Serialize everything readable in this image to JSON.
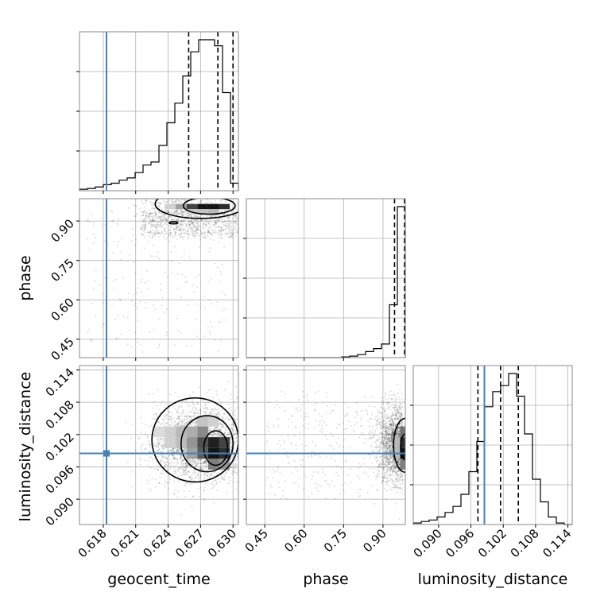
{
  "chart_data": {
    "type": "corner",
    "parameters": [
      "geocent_time",
      "phase",
      "luminosity_distance"
    ],
    "ranges": {
      "geocent_time": [
        0.6158,
        0.6305
      ],
      "phase": [
        0.38,
        0.985
      ],
      "luminosity_distance": [
        0.0853,
        0.1148
      ]
    },
    "truth": {
      "geocent_time": 0.6183,
      "luminosity_distance": 0.0985
    },
    "truth_color": "#4682b4",
    "quantiles": {
      "geocent_time": [
        0.6259,
        0.6286,
        0.63
      ],
      "phase": [
        0.944,
        0.982,
        0.984
      ],
      "luminosity_distance": [
        0.0973,
        0.1015,
        0.1048
      ]
    },
    "ticks": {
      "geocent_time": [
        "0.618",
        "0.621",
        "0.624",
        "0.627",
        "0.630"
      ],
      "phase": [
        "0.45",
        "0.60",
        "0.75",
        "0.90"
      ],
      "luminosity_distance": [
        "0.090",
        "0.096",
        "0.102",
        "0.108",
        "0.114"
      ]
    },
    "hist_geocent_time": [
      0.01,
      0.015,
      0.025,
      0.04,
      0.05,
      0.07,
      0.085,
      0.12,
      0.17,
      0.19,
      0.3,
      0.45,
      0.58,
      0.76,
      0.92,
      1.0,
      1.0,
      0.96,
      0.65,
      0.05
    ],
    "hist_phase": [
      0.0,
      0.0,
      0.0,
      0.0,
      0.0,
      0.0,
      0.0,
      0.0,
      0.0,
      0.0,
      0.0,
      0.0,
      0.005,
      0.01,
      0.02,
      0.04,
      0.06,
      0.09,
      0.35,
      1.0
    ],
    "hist_luminosity_distance": [
      0.01,
      0.02,
      0.03,
      0.05,
      0.08,
      0.12,
      0.2,
      0.35,
      0.55,
      0.78,
      0.88,
      0.92,
      1.0,
      0.85,
      0.6,
      0.3,
      0.15,
      0.05,
      0.01,
      0.0
    ],
    "gt_vs_phase_density": [
      {
        "x": 0.6262,
        "y": 0.955,
        "z": 0.8
      },
      {
        "x": 0.6272,
        "y": 0.955,
        "z": 1.0
      },
      {
        "x": 0.6282,
        "y": 0.955,
        "z": 1.0
      },
      {
        "x": 0.6292,
        "y": 0.955,
        "z": 0.9
      },
      {
        "x": 0.6252,
        "y": 0.955,
        "z": 0.4
      },
      {
        "x": 0.6242,
        "y": 0.955,
        "z": 0.2
      },
      {
        "x": 0.6272,
        "y": 0.935,
        "z": 0.25
      },
      {
        "x": 0.6282,
        "y": 0.935,
        "z": 0.3
      },
      {
        "x": 0.6262,
        "y": 0.935,
        "z": 0.2
      }
    ],
    "gt_vs_ld_density": [
      {
        "x": 0.6282,
        "y": 0.0985,
        "z": 1.0
      },
      {
        "x": 0.6292,
        "y": 0.0985,
        "z": 0.9
      },
      {
        "x": 0.6282,
        "y": 0.1005,
        "z": 0.95
      },
      {
        "x": 0.6292,
        "y": 0.1005,
        "z": 0.8
      },
      {
        "x": 0.6272,
        "y": 0.0985,
        "z": 0.7
      },
      {
        "x": 0.6272,
        "y": 0.1005,
        "z": 0.75
      },
      {
        "x": 0.6282,
        "y": 0.0965,
        "z": 0.55
      },
      {
        "x": 0.6272,
        "y": 0.1025,
        "z": 0.5
      },
      {
        "x": 0.6262,
        "y": 0.1005,
        "z": 0.45
      },
      {
        "x": 0.6262,
        "y": 0.1025,
        "z": 0.35
      },
      {
        "x": 0.6252,
        "y": 0.1025,
        "z": 0.3
      },
      {
        "x": 0.6252,
        "y": 0.1005,
        "z": 0.28
      },
      {
        "x": 0.6242,
        "y": 0.1025,
        "z": 0.2
      },
      {
        "x": 0.6242,
        "y": 0.1005,
        "z": 0.2
      },
      {
        "x": 0.6262,
        "y": 0.0985,
        "z": 0.4
      },
      {
        "x": 0.6292,
        "y": 0.0965,
        "z": 0.45
      },
      {
        "x": 0.6232,
        "y": 0.1025,
        "z": 0.15
      },
      {
        "x": 0.6272,
        "y": 0.1045,
        "z": 0.25
      },
      {
        "x": 0.6282,
        "y": 0.1045,
        "z": 0.2
      }
    ],
    "phase_vs_ld_density": [
      {
        "x": 0.975,
        "y": 0.0985,
        "z": 1.0
      },
      {
        "x": 0.975,
        "y": 0.1005,
        "z": 0.9
      },
      {
        "x": 0.975,
        "y": 0.1025,
        "z": 0.6
      },
      {
        "x": 0.975,
        "y": 0.0965,
        "z": 0.55
      },
      {
        "x": 0.955,
        "y": 0.1005,
        "z": 0.3
      },
      {
        "x": 0.955,
        "y": 0.0985,
        "z": 0.3
      }
    ]
  }
}
